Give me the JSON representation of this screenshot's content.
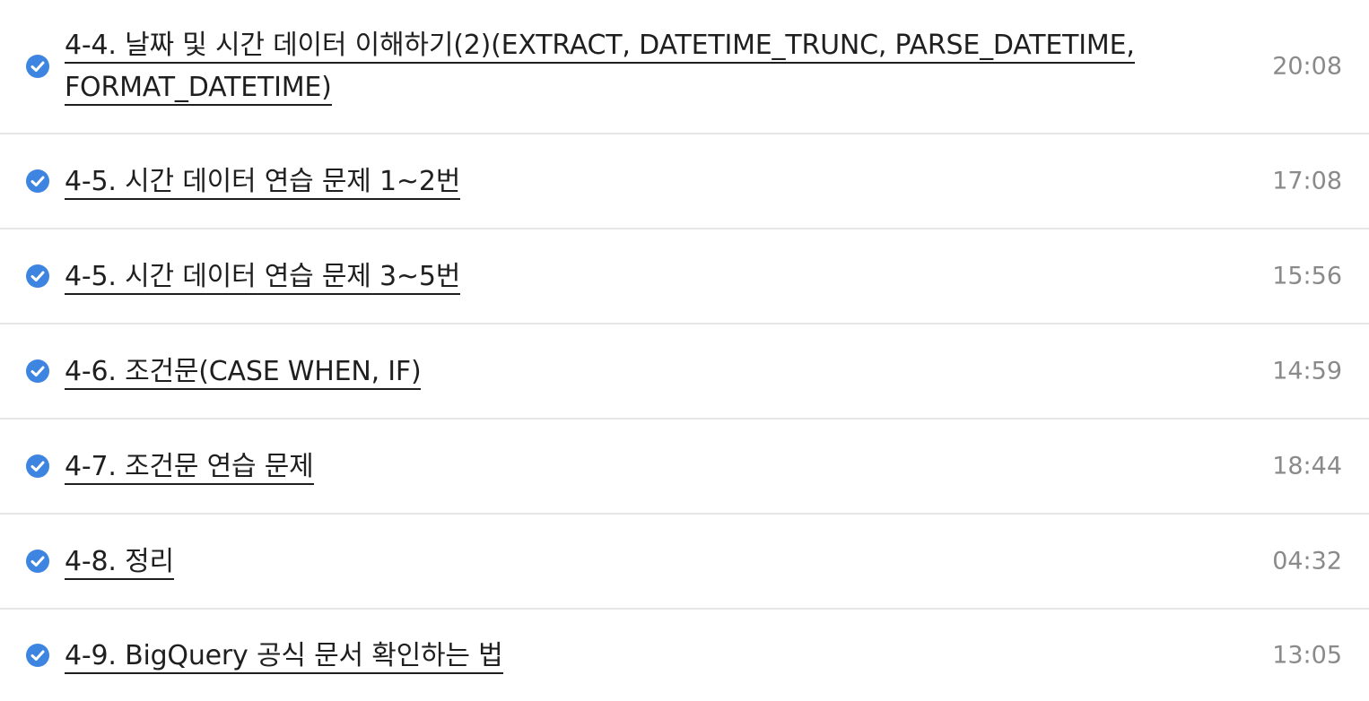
{
  "lessons": [
    {
      "title": "4-4. 날짜 및 시간 데이터 이해하기(2)(EXTRACT, DATETIME_TRUNC, PARSE_DATETIME, FORMAT_DATETIME)",
      "duration": "20:08",
      "completed": true
    },
    {
      "title": "4-5. 시간 데이터 연습 문제 1~2번",
      "duration": "17:08",
      "completed": true
    },
    {
      "title": "4-5. 시간 데이터 연습 문제 3~5번",
      "duration": "15:56",
      "completed": true
    },
    {
      "title": "4-6. 조건문(CASE WHEN, IF)",
      "duration": "14:59",
      "completed": true
    },
    {
      "title": "4-7. 조건문 연습 문제",
      "duration": "18:44",
      "completed": true
    },
    {
      "title": "4-8. 정리",
      "duration": "04:32",
      "completed": true
    },
    {
      "title": "4-9. BigQuery 공식 문서 확인하는 법",
      "duration": "13:05",
      "completed": true
    }
  ],
  "colors": {
    "check": "#3d85e0",
    "title": "#1f1f1f",
    "duration": "#8a8a8a",
    "divider": "#e6e6e6"
  },
  "icons": {
    "completed": "check-circle-icon"
  }
}
